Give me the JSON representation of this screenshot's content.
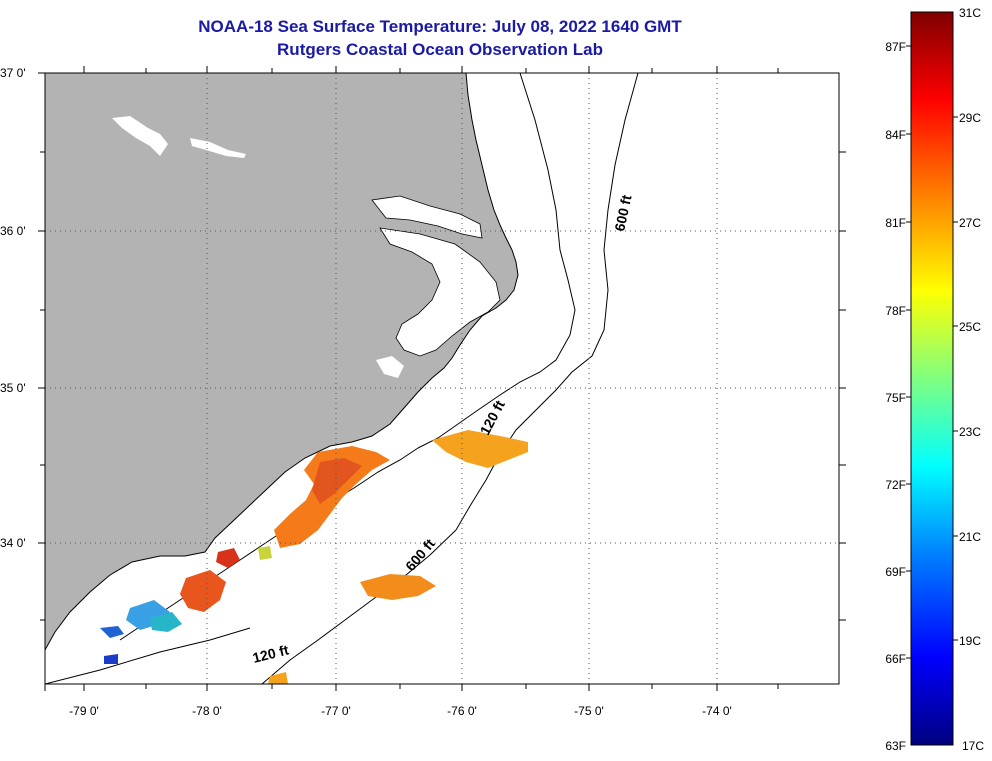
{
  "header": {
    "title": "NOAA-18 Sea Surface Temperature:  July 08, 2022 1640 GMT",
    "subtitle": "Rutgers Coastal Ocean Observation Lab"
  },
  "map": {
    "lat_labels": [
      "37 0'",
      "36 0'",
      "35 0'",
      "34 0'"
    ],
    "lon_labels": [
      "-79 0'",
      "-78 0'",
      "-77 0'",
      "-76 0'",
      "-75 0'",
      "-74 0'"
    ],
    "lat_range": [
      33.1,
      37.0
    ],
    "lon_range": [
      -79.3,
      -73.0
    ],
    "isobath_labels": [
      "120 ft",
      "600 ft",
      "120 ft",
      "600 ft"
    ]
  },
  "colorbar": {
    "fahrenheit_labels": [
      "87F",
      "84F",
      "81F",
      "78F",
      "75F",
      "72F",
      "69F",
      "66F",
      "63F"
    ],
    "celsius_labels": [
      "31C",
      "29C",
      "27C",
      "25C",
      "23C",
      "21C",
      "19C",
      "17C"
    ],
    "range_c": [
      17,
      31
    ],
    "colors": [
      "#00007f",
      "#0000ff",
      "#0080ff",
      "#00ffff",
      "#80ff80",
      "#ffff00",
      "#ff8000",
      "#ff0000",
      "#7f0000"
    ]
  },
  "colors": {
    "land": "#b3b3b3",
    "title": "#1a1aa6"
  }
}
